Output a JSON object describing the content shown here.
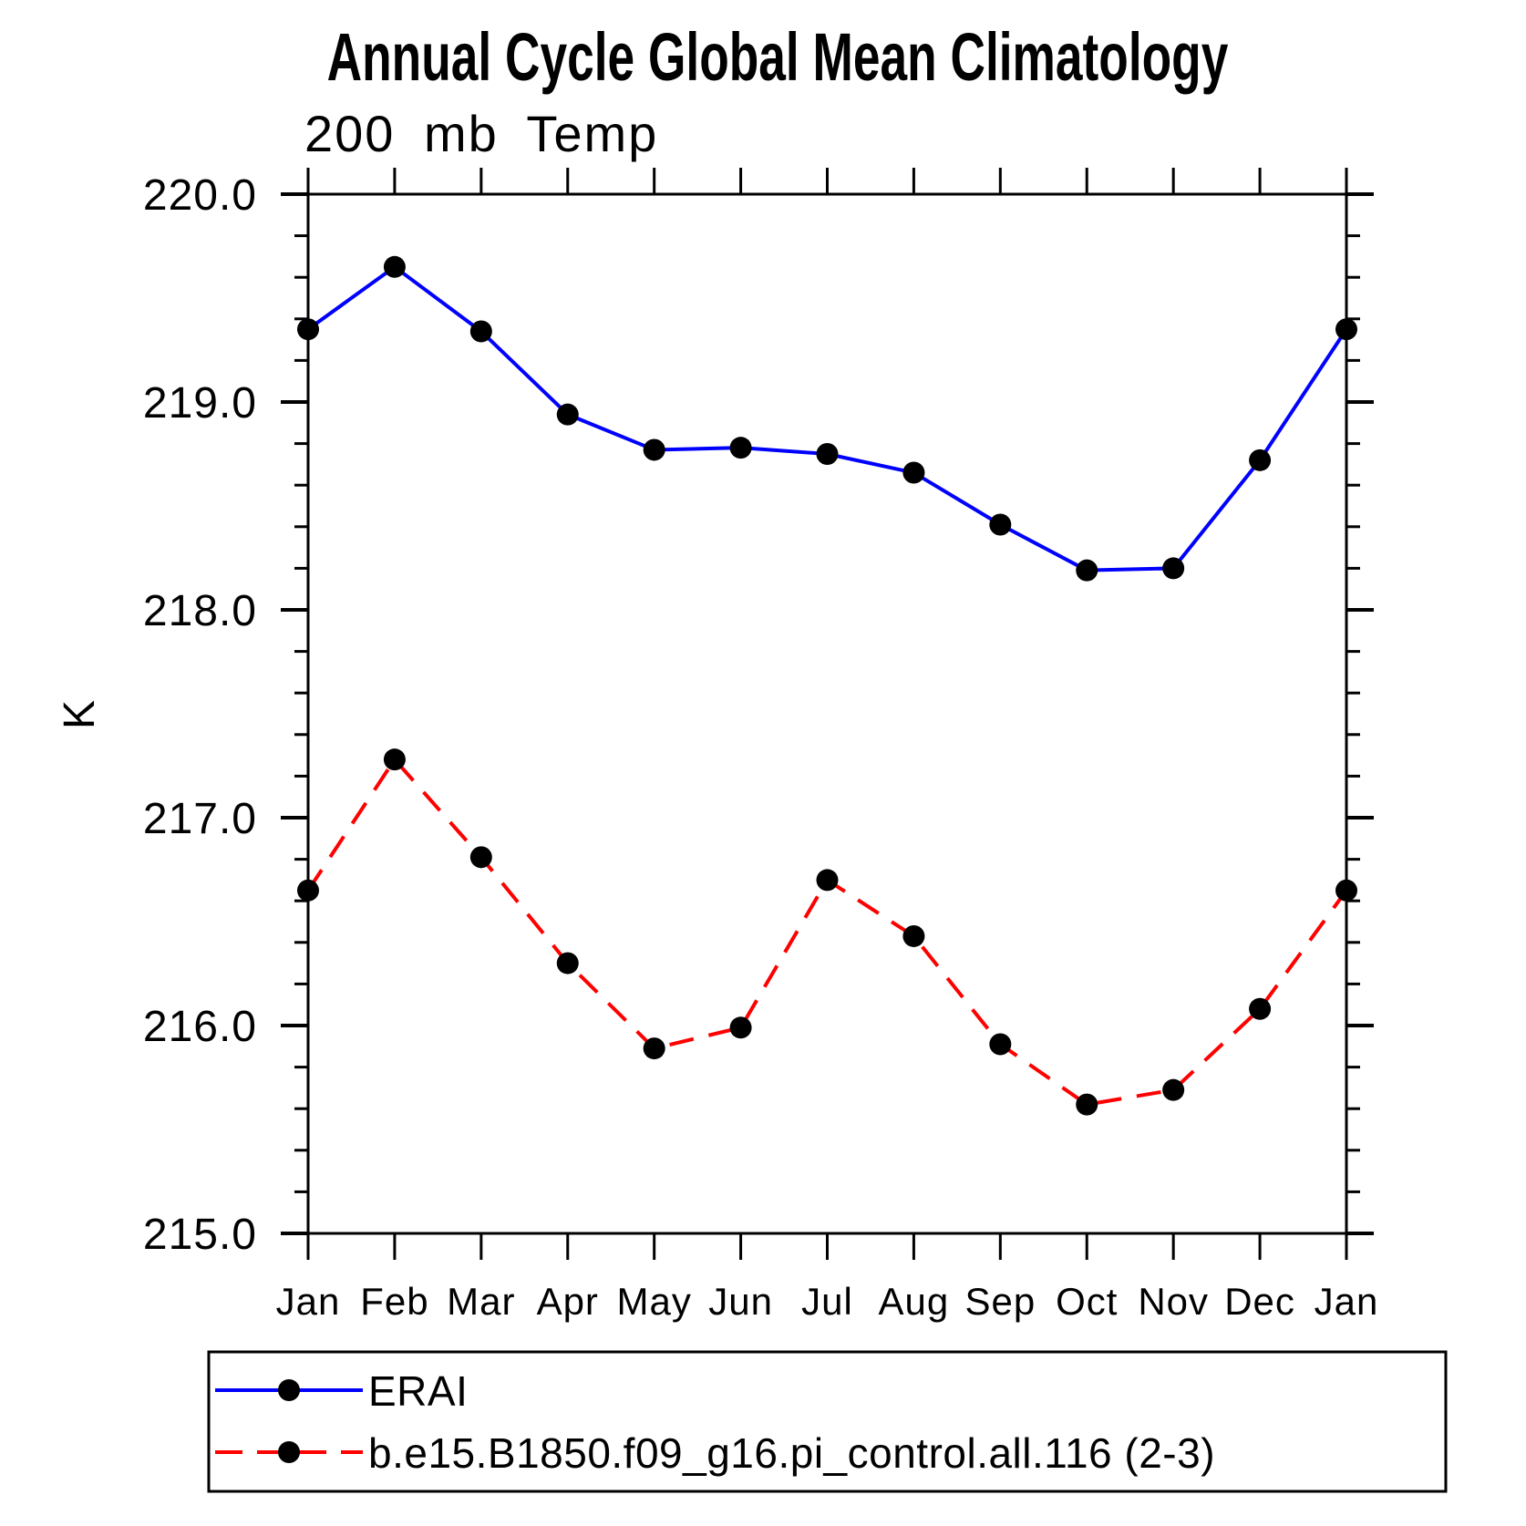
{
  "title": "Annual Cycle Global Mean Climatology",
  "subtitle": "200 mb Temp",
  "chart_data": {
    "type": "line",
    "title": "Annual Cycle Global Mean Climatology",
    "subtitle": "200 mb Temp",
    "xlabel": "",
    "ylabel": "K",
    "categories": [
      "Jan",
      "Feb",
      "Mar",
      "Apr",
      "May",
      "Jun",
      "Jul",
      "Aug",
      "Sep",
      "Oct",
      "Nov",
      "Dec",
      "Jan"
    ],
    "series": [
      {
        "name": "ERAI",
        "color": "#0000ff",
        "line_style": "solid",
        "marker": "filled-circle",
        "marker_color": "#000000",
        "values": [
          219.35,
          219.65,
          219.34,
          218.94,
          218.77,
          218.78,
          218.75,
          218.66,
          218.41,
          218.19,
          218.2,
          218.72,
          219.35
        ]
      },
      {
        "name": "b.e15.B1850.f09_g16.pi_control.all.116 (2-3)",
        "color": "#ff0000",
        "line_style": "dashed",
        "marker": "filled-circle",
        "marker_color": "#000000",
        "values": [
          216.65,
          217.28,
          216.81,
          216.3,
          215.89,
          215.99,
          216.7,
          216.43,
          215.91,
          215.62,
          215.69,
          216.08,
          216.65
        ]
      }
    ],
    "ylim": [
      215.0,
      220.0
    ],
    "y_major_step": 1.0,
    "y_minor_step": 0.2,
    "y_tick_labels": [
      "215.0",
      "216.0",
      "217.0",
      "218.0",
      "219.0",
      "220.0"
    ],
    "grid": false,
    "legend_position": "bottom-left-box",
    "axis_color": "#000000"
  }
}
